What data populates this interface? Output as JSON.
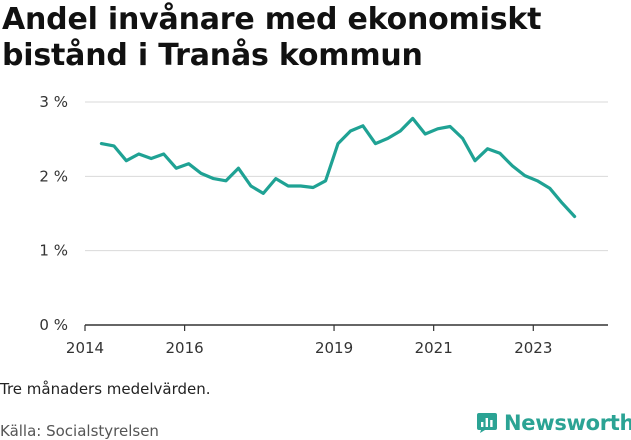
{
  "title": "Andel invånare med ekonomiskt bistånd i Tranås kommun",
  "note": "Tre månaders medelvärden.",
  "source": "Källa: Socialstyrelsen",
  "brand": "Newsworthy",
  "colors": {
    "line": "#1fa294",
    "grid": "#d9d9d9",
    "axis": "#333333",
    "brand": "#2ba394"
  },
  "chart_data": {
    "type": "line",
    "title": "Andel invånare med ekonomiskt bistånd i Tranås kommun",
    "xlabel": "",
    "ylabel": "",
    "ylim": [
      0,
      3
    ],
    "xlim": [
      2014,
      2024.5
    ],
    "yticks": [
      {
        "value": 0,
        "label": "0 %"
      },
      {
        "value": 1,
        "label": "1 %"
      },
      {
        "value": 2,
        "label": "2 %"
      },
      {
        "value": 3,
        "label": "3 %"
      }
    ],
    "xticks": [
      {
        "value": 2014,
        "label": "2014"
      },
      {
        "value": 2016,
        "label": "2016"
      },
      {
        "value": 2019,
        "label": "2019"
      },
      {
        "value": 2021,
        "label": "2021"
      },
      {
        "value": 2023,
        "label": "2023"
      }
    ],
    "grid": true,
    "series": [
      {
        "name": "Andel invånare med ekonomiskt bistånd",
        "x": [
          2014.33,
          2014.58,
          2014.83,
          2015.08,
          2015.33,
          2015.58,
          2015.83,
          2016.08,
          2016.33,
          2016.58,
          2016.83,
          2017.08,
          2017.33,
          2017.58,
          2017.83,
          2018.08,
          2018.33,
          2018.58,
          2018.83,
          2019.08,
          2019.33,
          2019.58,
          2019.83,
          2020.08,
          2020.33,
          2020.58,
          2020.83,
          2021.08,
          2021.33,
          2021.58,
          2021.83,
          2022.08,
          2022.33,
          2022.58,
          2022.83,
          2023.08,
          2023.33,
          2023.58,
          2023.83
        ],
        "values": [
          2.44,
          2.41,
          2.21,
          2.3,
          2.24,
          2.3,
          2.11,
          2.17,
          2.04,
          1.97,
          1.94,
          2.11,
          1.87,
          1.77,
          1.97,
          1.87,
          1.87,
          1.85,
          1.94,
          2.44,
          2.61,
          2.68,
          2.44,
          2.51,
          2.61,
          2.78,
          2.57,
          2.64,
          2.67,
          2.51,
          2.21,
          2.37,
          2.31,
          2.14,
          2.01,
          1.94,
          1.84,
          1.64,
          1.46
        ]
      }
    ]
  }
}
